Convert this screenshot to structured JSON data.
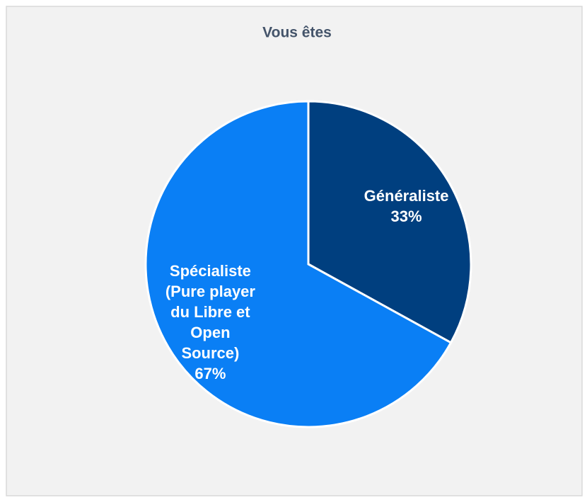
{
  "chart_data": {
    "type": "pie",
    "title": "Vous êtes",
    "categories": [
      "Généraliste",
      "Spécialiste (Pure player du Libre et Open Source)"
    ],
    "values": [
      33,
      67
    ],
    "value_labels": [
      "33%",
      "67%"
    ],
    "colors": [
      "#003f7f",
      "#0a7ff5"
    ]
  }
}
